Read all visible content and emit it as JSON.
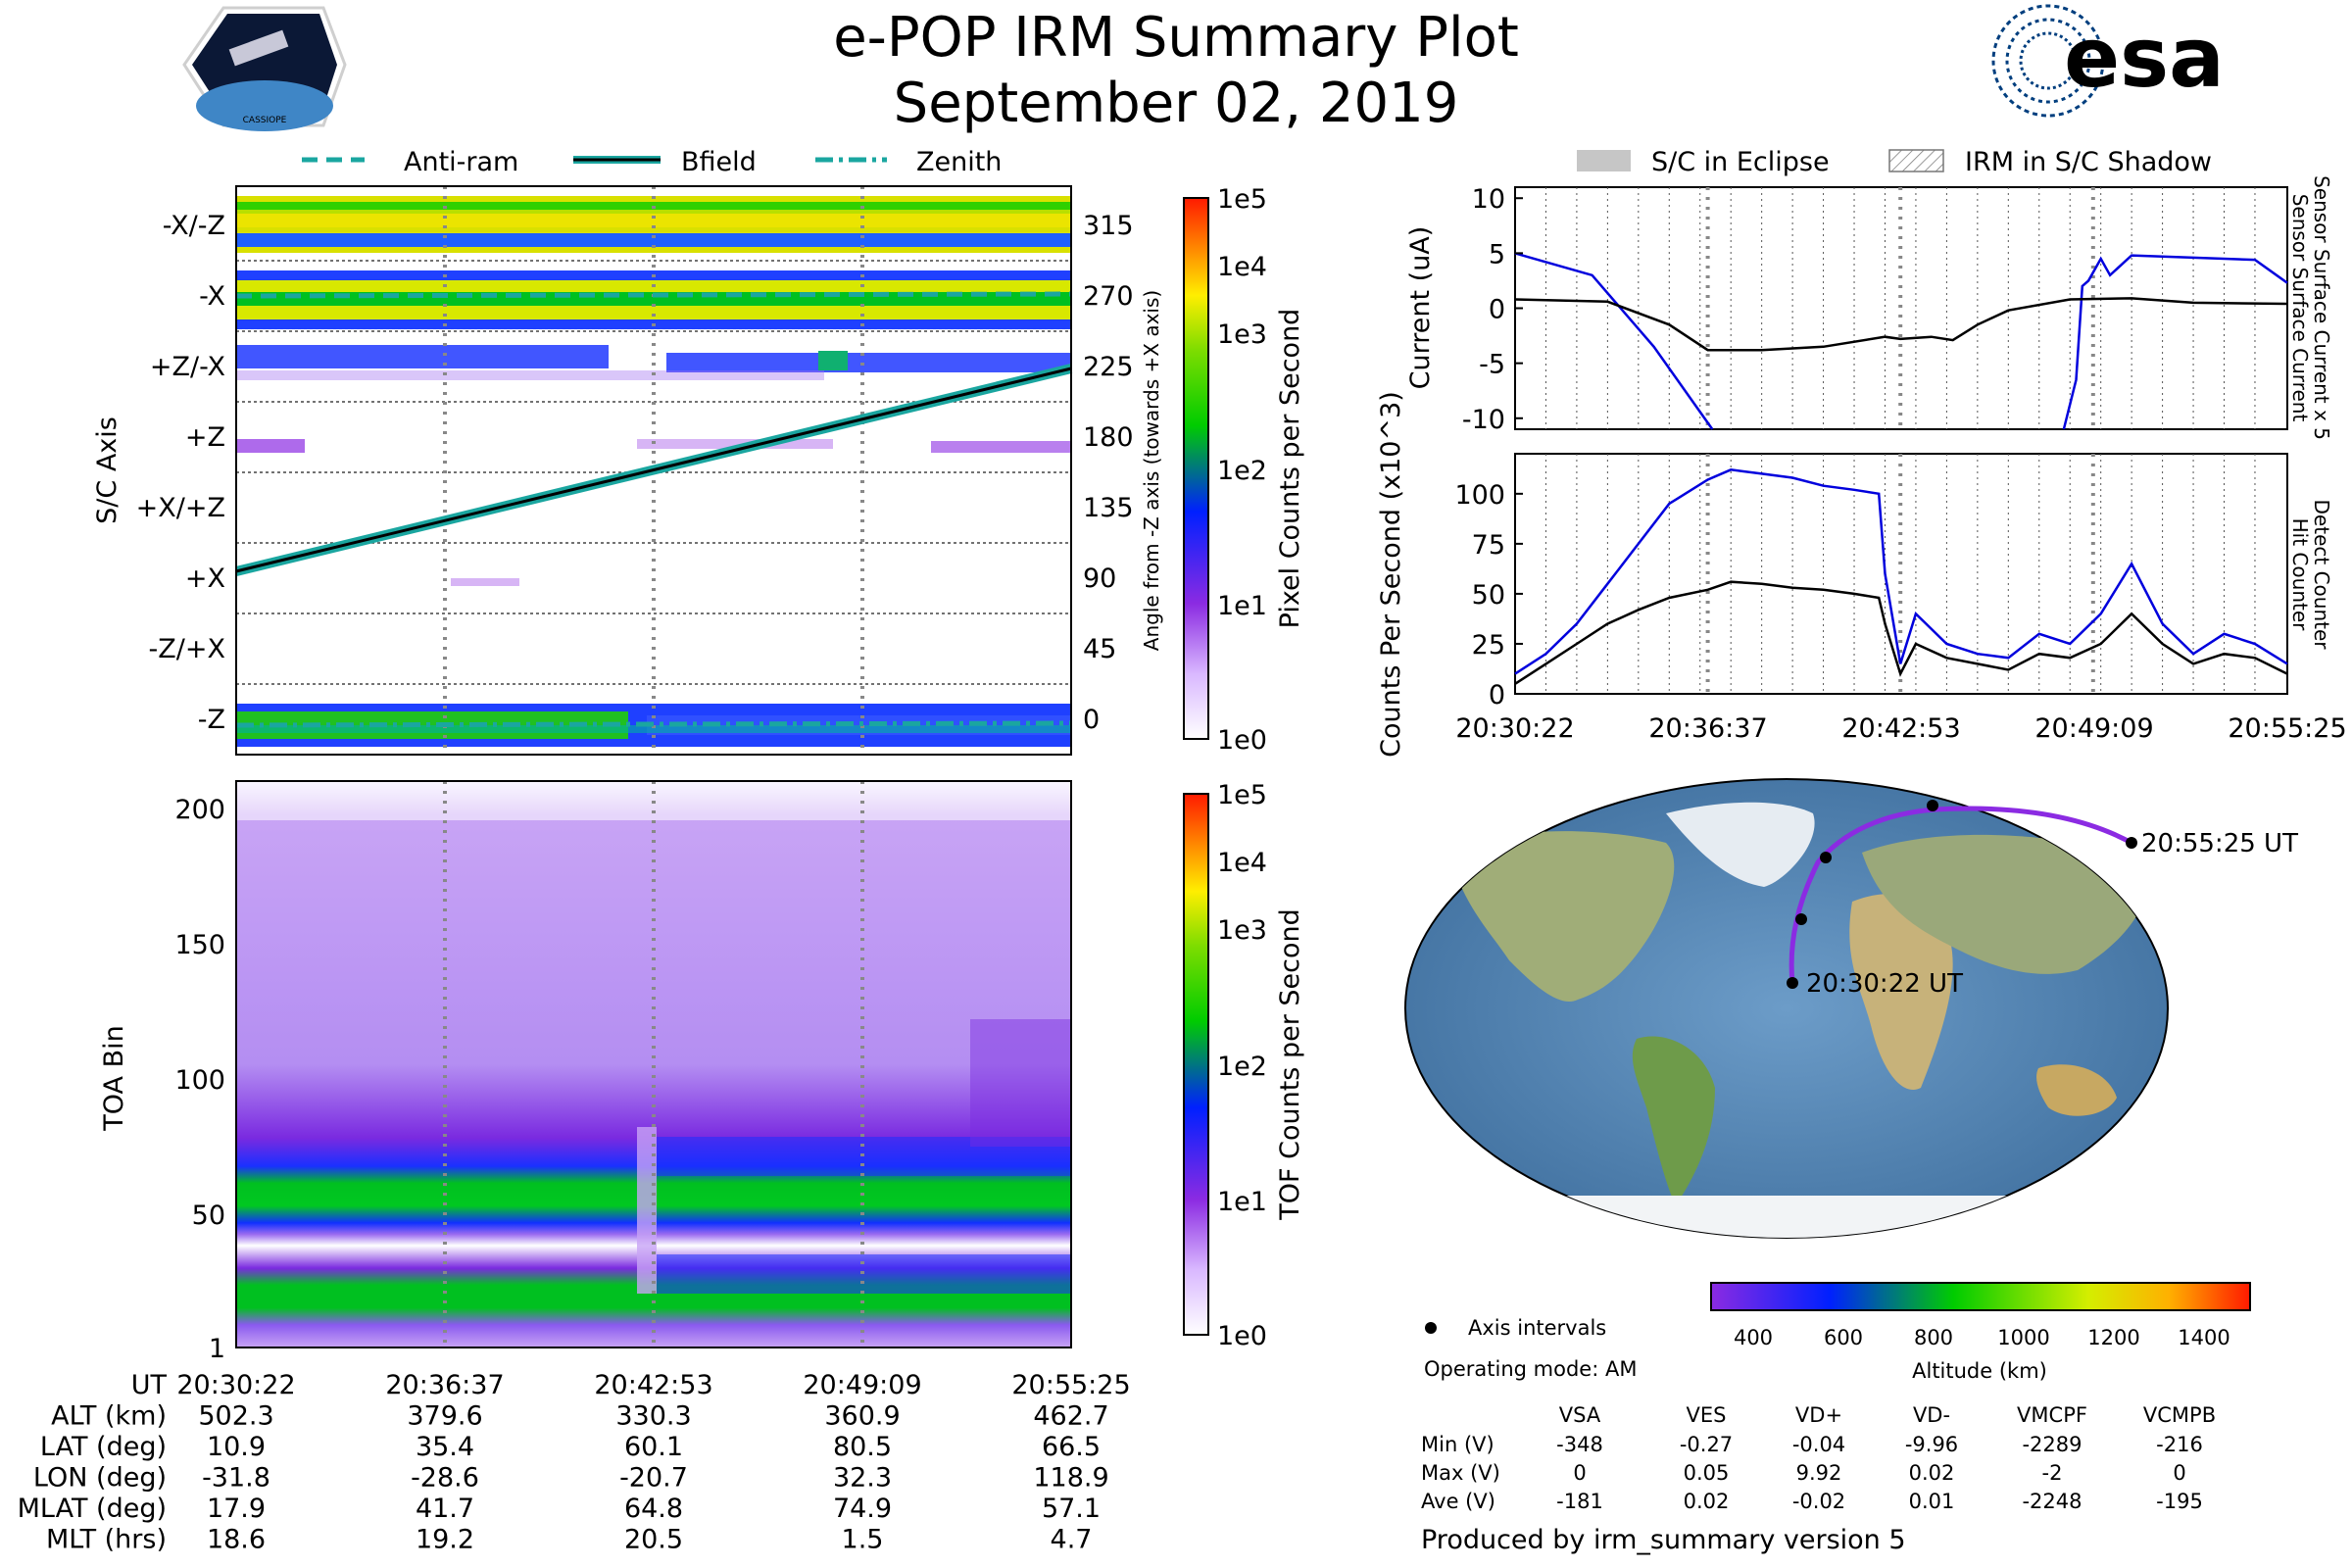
{
  "header": {
    "title": "e-POP IRM Summary Plot",
    "date": "September 02, 2019",
    "left_logo_text": "CASSIOPE",
    "right_logo_text": "esa"
  },
  "colors": {
    "anti_ram": "#1aa6a0",
    "bfield": "#1aa6a0",
    "zenith": "#1aa6a0",
    "current_x5": "#0000dd",
    "current": "#000000",
    "detect": "#0000dd",
    "hit": "#000000",
    "track": "#8b2be2"
  },
  "legend_top": {
    "anti_ram": "Anti-ram",
    "bfield": "Bfield",
    "zenith": "Zenith"
  },
  "legend_right": {
    "eclipse": "S/C in Eclipse",
    "shadow": "IRM in S/C Shadow"
  },
  "pixel_panel": {
    "ylabel": "S/C Axis",
    "right_ylabel": "Angle from -Z axis (towards +X axis)",
    "left_ticks": [
      "-X/-Z",
      "-X",
      "+Z/-X",
      "+Z",
      "+X/+Z",
      "+X",
      "-Z/+X",
      "-Z"
    ],
    "right_ticks": [
      "315",
      "270",
      "225",
      "180",
      "135",
      "90",
      "45",
      "0"
    ],
    "colorbar_label": "Pixel Counts per Second",
    "colorbar_ticks": [
      "1e5",
      "1e4",
      "1e3",
      "1e2",
      "1e1",
      "1e0"
    ]
  },
  "tof_panel": {
    "ylabel": "TOA Bin",
    "ticks": [
      "200",
      "150",
      "100",
      "50",
      "1"
    ],
    "colorbar_label": "TOF Counts per Second",
    "colorbar_ticks": [
      "1e5",
      "1e4",
      "1e3",
      "1e2",
      "1e1",
      "1e0"
    ]
  },
  "chart_data": [
    {
      "type": "line",
      "title": "",
      "ylabel": "Current (uA)",
      "right_labels": [
        "Sensor Surface Current x 5",
        "Sensor Surface Current"
      ],
      "ylim": [
        -11,
        11
      ],
      "yticks": [
        "10",
        "5",
        "0",
        "-5",
        "-10"
      ],
      "xlim": [
        0,
        25.05
      ],
      "series": [
        {
          "name": "Sensor Surface Current x 5",
          "x": [
            0,
            2.5,
            4.5,
            6.4,
            9.5,
            17.8,
            18.2,
            18.4,
            18.6,
            19.0,
            19.3,
            20.0,
            24.0,
            25.05
          ],
          "y": [
            5,
            3,
            -3.5,
            -11,
            null,
            -11,
            -6.5,
            2,
            2.5,
            4.5,
            3,
            4.8,
            4.4,
            2.3
          ]
        },
        {
          "name": "Sensor Surface Current",
          "x": [
            0,
            3,
            5,
            6.25,
            8,
            10,
            12,
            12.5,
            13.5,
            14.2,
            15,
            16,
            18,
            20,
            22,
            25.05
          ],
          "y": [
            0.8,
            0.6,
            -1.5,
            -3.8,
            -3.8,
            -3.5,
            -2.6,
            -2.8,
            -2.6,
            -2.9,
            -1.5,
            -0.2,
            0.8,
            0.9,
            0.5,
            0.4
          ]
        }
      ]
    },
    {
      "type": "line",
      "ylabel": "Counts Per Second (x10^3)",
      "right_labels": [
        "Detect Counter",
        "Hit Counter"
      ],
      "ylim": [
        0,
        120
      ],
      "yticks": [
        "100",
        "75",
        "50",
        "25",
        "0"
      ],
      "xlim": [
        0,
        25.05
      ],
      "xticks": [
        "20:30:22",
        "20:36:37",
        "20:42:53",
        "20:49:09",
        "20:55:25"
      ],
      "series": [
        {
          "name": "Detect Counter",
          "x": [
            0,
            1,
            2,
            3,
            4,
            5,
            6.25,
            7,
            8,
            9,
            10,
            11,
            11.8,
            12,
            12.5,
            13,
            14,
            15,
            16,
            17,
            18,
            19,
            20,
            21,
            22,
            23,
            24,
            25.05
          ],
          "y": [
            10,
            20,
            35,
            55,
            75,
            95,
            107,
            112,
            110,
            108,
            104,
            102,
            100,
            60,
            15,
            40,
            25,
            20,
            18,
            30,
            25,
            40,
            65,
            35,
            20,
            30,
            25,
            15
          ]
        },
        {
          "name": "Hit Counter",
          "x": [
            0,
            1,
            2,
            3,
            4,
            5,
            6.25,
            7,
            8,
            9,
            10,
            11,
            11.8,
            12,
            12.5,
            13,
            14,
            15,
            16,
            17,
            18,
            19,
            20,
            21,
            22,
            23,
            24,
            25.05
          ],
          "y": [
            5,
            15,
            25,
            35,
            42,
            48,
            52,
            56,
            55,
            53,
            52,
            50,
            48,
            35,
            10,
            25,
            18,
            15,
            12,
            20,
            18,
            25,
            40,
            25,
            15,
            20,
            18,
            10
          ]
        }
      ]
    }
  ],
  "map": {
    "start_label": "20:30:22 UT",
    "end_label": "20:55:25 UT",
    "legend_marker": "Axis intervals",
    "mode": "Operating mode: AM",
    "altitude_label": "Altitude (km)",
    "altitude_ticks": [
      "400",
      "600",
      "800",
      "1000",
      "1200",
      "1400"
    ]
  },
  "time_table": {
    "rows": [
      {
        "label": "UT",
        "values": [
          "20:30:22",
          "20:36:37",
          "20:42:53",
          "20:49:09",
          "20:55:25"
        ]
      },
      {
        "label": "ALT (km)",
        "values": [
          "502.3",
          "379.6",
          "330.3",
          "360.9",
          "462.7"
        ]
      },
      {
        "label": "LAT (deg)",
        "values": [
          "10.9",
          "35.4",
          "60.1",
          "80.5",
          "66.5"
        ]
      },
      {
        "label": "LON (deg)",
        "values": [
          "-31.8",
          "-28.6",
          "-20.7",
          "32.3",
          "118.9"
        ]
      },
      {
        "label": "MLAT (deg)",
        "values": [
          "17.9",
          "41.7",
          "64.8",
          "74.9",
          "57.1"
        ]
      },
      {
        "label": "MLT (hrs)",
        "values": [
          "18.6",
          "19.2",
          "20.5",
          "1.5",
          "4.7"
        ]
      }
    ]
  },
  "voltage_table": {
    "headers": [
      "VSA",
      "VES",
      "VD+",
      "VD-",
      "VMCPF",
      "VCMPB"
    ],
    "rows": [
      {
        "label": "Min (V)",
        "values": [
          "-348",
          "-0.27",
          "-0.04",
          "-9.96",
          "-2289",
          "-216"
        ]
      },
      {
        "label": "Max (V)",
        "values": [
          "0",
          "0.05",
          "9.92",
          "0.02",
          "-2",
          "0"
        ]
      },
      {
        "label": "Ave (V)",
        "values": [
          "-181",
          "0.02",
          "-0.02",
          "0.01",
          "-2248",
          "-195"
        ]
      }
    ]
  },
  "footer": "Produced by irm_summary version 5"
}
